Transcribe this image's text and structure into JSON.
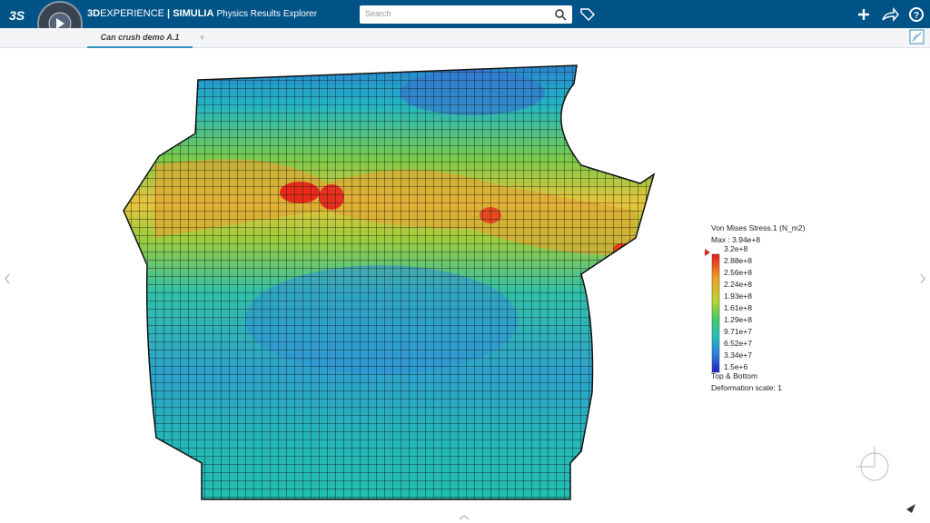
{
  "header": {
    "brand_3d": "3D",
    "brand_experience": "EXPERIENCE",
    "brand_separator": "|",
    "brand_simulia": "SIMULIA",
    "app_name": "Physics Results Explorer",
    "search_placeholder": "Search"
  },
  "tabs": {
    "active": "Can crush demo A.1",
    "add": "+"
  },
  "legend": {
    "title": "Von Mises Stress.1 (N_m2)",
    "max": "Max : 3.94e+8",
    "labels": [
      "3.2e+8",
      "2.88e+8",
      "2.56e+8",
      "2.24e+8",
      "1.93e+8",
      "1.61e+8",
      "1.29e+8",
      "9.71e+7",
      "6.52e+7",
      "3.34e+7",
      "1.5e+6"
    ],
    "group": "Top & Bottom",
    "deformation": "Deformation scale: 1"
  }
}
